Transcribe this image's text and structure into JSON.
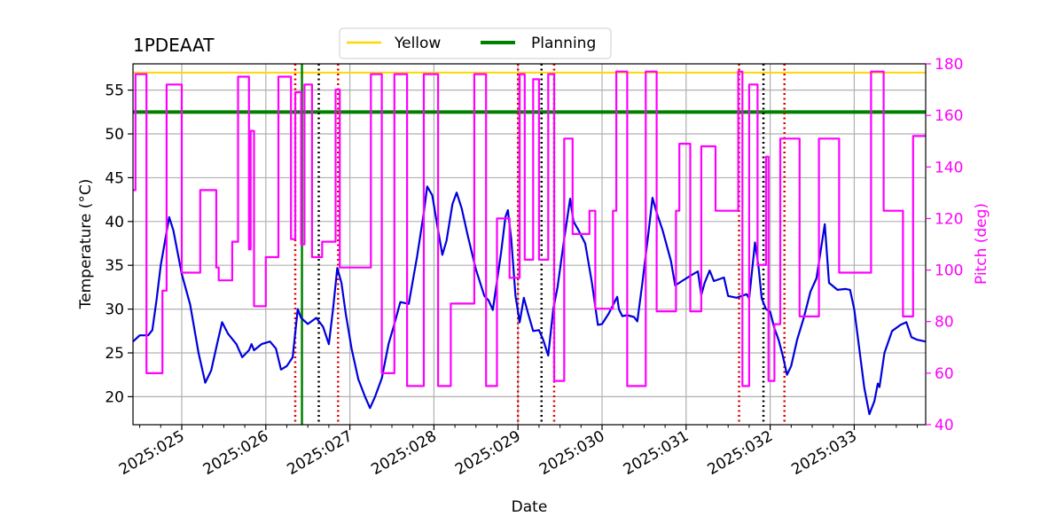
{
  "chart_data": {
    "type": "line",
    "title": "1PDEAAT",
    "xlabel": "Date",
    "ylabel_left": "Temperature (°C)",
    "ylabel_right": "Pitch (deg)",
    "x_unit": "day of year 2025",
    "xlim": [
      24.42,
      33.85
    ],
    "ylim_left": [
      16.8,
      58.0
    ],
    "ylim_right": [
      40,
      180
    ],
    "x_ticks": [
      {
        "value": 25,
        "label": "2025:025"
      },
      {
        "value": 26,
        "label": "2025:026"
      },
      {
        "value": 27,
        "label": "2025:027"
      },
      {
        "value": 28,
        "label": "2025:028"
      },
      {
        "value": 29,
        "label": "2025:029"
      },
      {
        "value": 30,
        "label": "2025:030"
      },
      {
        "value": 31,
        "label": "2025:031"
      },
      {
        "value": 32,
        "label": "2025:032"
      },
      {
        "value": 33,
        "label": "2025:033"
      }
    ],
    "y_ticks_left": [
      20,
      25,
      30,
      35,
      40,
      45,
      50,
      55
    ],
    "y_ticks_right": [
      40,
      60,
      80,
      100,
      120,
      140,
      160,
      180
    ],
    "grid": true,
    "legend": {
      "placement": "top-center",
      "entries": [
        {
          "name": "Yellow",
          "color": "#ffd700"
        },
        {
          "name": "Planning",
          "color": "#008000"
        }
      ]
    },
    "limit_lines": [
      {
        "name": "Yellow",
        "value": 57.0,
        "color": "#ffd700"
      },
      {
        "name": "Planning",
        "value": 52.5,
        "color": "#008000"
      }
    ],
    "series": [
      {
        "name": "1PDEAAT",
        "axis": "left",
        "color": "#0000dd",
        "points": [
          [
            24.42,
            26.3
          ],
          [
            24.5,
            27.0
          ],
          [
            24.6,
            27.0
          ],
          [
            24.65,
            27.6
          ],
          [
            24.7,
            31
          ],
          [
            24.75,
            35
          ],
          [
            24.85,
            40.5
          ],
          [
            24.9,
            39
          ],
          [
            25.0,
            34
          ],
          [
            25.1,
            30.5
          ],
          [
            25.2,
            25
          ],
          [
            25.28,
            21.6
          ],
          [
            25.35,
            23
          ],
          [
            25.42,
            26
          ],
          [
            25.48,
            28.5
          ],
          [
            25.55,
            27.2
          ],
          [
            25.65,
            26
          ],
          [
            25.72,
            24.5
          ],
          [
            25.8,
            25.3
          ],
          [
            25.83,
            26
          ],
          [
            25.86,
            25.3
          ],
          [
            25.95,
            26
          ],
          [
            26.05,
            26.3
          ],
          [
            26.12,
            25.5
          ],
          [
            26.18,
            23.1
          ],
          [
            26.25,
            23.5
          ],
          [
            26.32,
            24.5
          ],
          [
            26.38,
            30
          ],
          [
            26.42,
            29
          ],
          [
            26.5,
            28.3
          ],
          [
            26.6,
            29
          ],
          [
            26.68,
            28
          ],
          [
            26.75,
            26
          ],
          [
            26.8,
            30
          ],
          [
            26.85,
            34.7
          ],
          [
            26.9,
            33
          ],
          [
            26.95,
            29.5
          ],
          [
            27.02,
            25.5
          ],
          [
            27.1,
            22
          ],
          [
            27.18,
            20
          ],
          [
            27.24,
            18.7
          ],
          [
            27.3,
            20
          ],
          [
            27.38,
            22.1
          ],
          [
            27.46,
            26
          ],
          [
            27.52,
            28
          ],
          [
            27.6,
            30.8
          ],
          [
            27.7,
            30.6
          ],
          [
            27.8,
            36
          ],
          [
            27.88,
            41
          ],
          [
            27.92,
            44
          ],
          [
            27.98,
            43
          ],
          [
            28.05,
            39
          ],
          [
            28.1,
            36.2
          ],
          [
            28.15,
            37.8
          ],
          [
            28.22,
            42
          ],
          [
            28.27,
            43.3
          ],
          [
            28.33,
            41.5
          ],
          [
            28.4,
            38.5
          ],
          [
            28.5,
            34.5
          ],
          [
            28.6,
            31.5
          ],
          [
            28.65,
            31
          ],
          [
            28.7,
            29.9
          ],
          [
            28.8,
            36.5
          ],
          [
            28.85,
            40.5
          ],
          [
            28.88,
            41.3
          ],
          [
            28.92,
            38
          ],
          [
            28.97,
            31.5
          ],
          [
            29.02,
            28.5
          ],
          [
            29.07,
            31.3
          ],
          [
            29.12,
            29.5
          ],
          [
            29.18,
            27.5
          ],
          [
            29.25,
            27.6
          ],
          [
            29.3,
            26.5
          ],
          [
            29.36,
            24.7
          ],
          [
            29.42,
            30
          ],
          [
            29.47,
            32.5
          ],
          [
            29.55,
            38
          ],
          [
            29.62,
            42.6
          ],
          [
            29.66,
            40
          ],
          [
            29.72,
            39
          ],
          [
            29.8,
            37.5
          ],
          [
            29.88,
            33
          ],
          [
            29.95,
            28.2
          ],
          [
            30.0,
            28.3
          ],
          [
            30.08,
            29.5
          ],
          [
            30.18,
            31.4
          ],
          [
            30.2,
            30
          ],
          [
            30.24,
            29.2
          ],
          [
            30.3,
            29.3
          ],
          [
            30.38,
            29.1
          ],
          [
            30.42,
            28.6
          ],
          [
            30.48,
            33
          ],
          [
            30.55,
            38.5
          ],
          [
            30.6,
            42.7
          ],
          [
            30.65,
            41
          ],
          [
            30.72,
            39
          ],
          [
            30.82,
            35.5
          ],
          [
            30.87,
            32.7
          ],
          [
            30.95,
            33.2
          ],
          [
            31.05,
            33.8
          ],
          [
            31.14,
            34.3
          ],
          [
            31.18,
            31.6
          ],
          [
            31.22,
            33
          ],
          [
            31.28,
            34.4
          ],
          [
            31.33,
            33.2
          ],
          [
            31.45,
            33.6
          ],
          [
            31.5,
            31.5
          ],
          [
            31.6,
            31.3
          ],
          [
            31.72,
            31.7
          ],
          [
            31.75,
            31.2
          ],
          [
            31.82,
            37.6
          ],
          [
            31.86,
            35
          ],
          [
            31.9,
            31.2
          ],
          [
            31.95,
            30
          ],
          [
            32.0,
            29.7
          ],
          [
            32.05,
            27.8
          ],
          [
            32.1,
            26.5
          ],
          [
            32.15,
            24.7
          ],
          [
            32.2,
            22.5
          ],
          [
            32.25,
            23.5
          ],
          [
            32.32,
            26.5
          ],
          [
            32.4,
            29
          ],
          [
            32.48,
            32
          ],
          [
            32.55,
            33.5
          ],
          [
            32.65,
            39.7
          ],
          [
            32.7,
            33.0
          ],
          [
            32.8,
            32.2
          ],
          [
            32.9,
            32.3
          ],
          [
            32.95,
            32.2
          ],
          [
            33.0,
            30
          ],
          [
            33.06,
            25.5
          ],
          [
            33.12,
            21
          ],
          [
            33.18,
            18
          ],
          [
            33.24,
            19.5
          ],
          [
            33.28,
            21.5
          ],
          [
            33.3,
            21.1
          ],
          [
            33.36,
            25
          ],
          [
            33.45,
            27.5
          ],
          [
            33.55,
            28.2
          ],
          [
            33.62,
            28.5
          ],
          [
            33.68,
            26.8
          ],
          [
            33.75,
            26.5
          ],
          [
            33.85,
            26.3
          ]
        ]
      },
      {
        "name": "Pitch",
        "axis": "right",
        "color": "#ff00ff",
        "points": [
          [
            24.42,
            131
          ],
          [
            24.45,
            131
          ],
          [
            24.45,
            176
          ],
          [
            24.58,
            176
          ],
          [
            24.58,
            60
          ],
          [
            24.77,
            60
          ],
          [
            24.77,
            92
          ],
          [
            24.82,
            92
          ],
          [
            24.82,
            172
          ],
          [
            25.0,
            172
          ],
          [
            25.0,
            99
          ],
          [
            25.22,
            99
          ],
          [
            25.22,
            131
          ],
          [
            25.41,
            131
          ],
          [
            25.41,
            101
          ],
          [
            25.44,
            101
          ],
          [
            25.44,
            96
          ],
          [
            25.6,
            96
          ],
          [
            25.6,
            111
          ],
          [
            25.67,
            111
          ],
          [
            25.67,
            175
          ],
          [
            25.8,
            175
          ],
          [
            25.8,
            108
          ],
          [
            25.82,
            108
          ],
          [
            25.82,
            154
          ],
          [
            25.86,
            154
          ],
          [
            25.86,
            86
          ],
          [
            26.0,
            86
          ],
          [
            26.0,
            105
          ],
          [
            26.15,
            105
          ],
          [
            26.15,
            175
          ],
          [
            26.3,
            175
          ],
          [
            26.3,
            112
          ],
          [
            26.35,
            112
          ],
          [
            26.35,
            169
          ],
          [
            26.42,
            169
          ],
          [
            26.42,
            110
          ],
          [
            26.46,
            110
          ],
          [
            26.46,
            172
          ],
          [
            26.55,
            172
          ],
          [
            26.55,
            105
          ],
          [
            26.67,
            105
          ],
          [
            26.67,
            111
          ],
          [
            26.83,
            111
          ],
          [
            26.83,
            170
          ],
          [
            26.88,
            170
          ],
          [
            26.88,
            101
          ],
          [
            27.25,
            101
          ],
          [
            27.25,
            176
          ],
          [
            27.38,
            176
          ],
          [
            27.38,
            60
          ],
          [
            27.53,
            60
          ],
          [
            27.53,
            176
          ],
          [
            27.68,
            176
          ],
          [
            27.68,
            55
          ],
          [
            27.88,
            55
          ],
          [
            27.88,
            176
          ],
          [
            28.05,
            176
          ],
          [
            28.05,
            55
          ],
          [
            28.2,
            55
          ],
          [
            28.2,
            87
          ],
          [
            28.48,
            87
          ],
          [
            28.48,
            176
          ],
          [
            28.62,
            176
          ],
          [
            28.62,
            55
          ],
          [
            28.75,
            55
          ],
          [
            28.75,
            120
          ],
          [
            28.9,
            120
          ],
          [
            28.9,
            97
          ],
          [
            29.02,
            97
          ],
          [
            29.02,
            176
          ],
          [
            29.08,
            176
          ],
          [
            29.08,
            104
          ],
          [
            29.18,
            104
          ],
          [
            29.18,
            174
          ],
          [
            29.25,
            174
          ],
          [
            29.25,
            104
          ],
          [
            29.36,
            104
          ],
          [
            29.36,
            176
          ],
          [
            29.43,
            176
          ],
          [
            29.43,
            57
          ],
          [
            29.55,
            57
          ],
          [
            29.55,
            151
          ],
          [
            29.65,
            151
          ],
          [
            29.65,
            114
          ],
          [
            29.85,
            114
          ],
          [
            29.85,
            123
          ],
          [
            29.92,
            123
          ],
          [
            29.92,
            85
          ],
          [
            30.13,
            85
          ],
          [
            30.13,
            123
          ],
          [
            30.17,
            123
          ],
          [
            30.17,
            177
          ],
          [
            30.3,
            177
          ],
          [
            30.3,
            55
          ],
          [
            30.52,
            55
          ],
          [
            30.52,
            177
          ],
          [
            30.65,
            177
          ],
          [
            30.65,
            84
          ],
          [
            30.88,
            84
          ],
          [
            30.88,
            123
          ],
          [
            30.92,
            123
          ],
          [
            30.92,
            149
          ],
          [
            31.05,
            149
          ],
          [
            31.05,
            84
          ],
          [
            31.18,
            84
          ],
          [
            31.18,
            148
          ],
          [
            31.35,
            148
          ],
          [
            31.35,
            123
          ],
          [
            31.62,
            123
          ],
          [
            31.62,
            177
          ],
          [
            31.67,
            177
          ],
          [
            31.67,
            55
          ],
          [
            31.75,
            55
          ],
          [
            31.75,
            172
          ],
          [
            31.85,
            172
          ],
          [
            31.85,
            102
          ],
          [
            31.95,
            102
          ],
          [
            31.95,
            144
          ],
          [
            31.98,
            144
          ],
          [
            31.98,
            57
          ],
          [
            32.05,
            57
          ],
          [
            32.05,
            79
          ],
          [
            32.12,
            79
          ],
          [
            32.12,
            151
          ],
          [
            32.35,
            151
          ],
          [
            32.35,
            82
          ],
          [
            32.58,
            82
          ],
          [
            32.58,
            151
          ],
          [
            32.82,
            151
          ],
          [
            32.82,
            99
          ],
          [
            33.2,
            99
          ],
          [
            33.2,
            177
          ],
          [
            33.35,
            177
          ],
          [
            33.35,
            123
          ],
          [
            33.58,
            123
          ],
          [
            33.58,
            82
          ],
          [
            33.7,
            82
          ],
          [
            33.7,
            152
          ],
          [
            33.85,
            152
          ]
        ]
      }
    ],
    "vertical_markers": [
      {
        "x": 26.35,
        "color": "#dd0000",
        "style": "dotted"
      },
      {
        "x": 26.43,
        "color": "#008000",
        "style": "solid"
      },
      {
        "x": 26.63,
        "color": "#000000",
        "style": "dotted"
      },
      {
        "x": 26.86,
        "color": "#dd0000",
        "style": "dotted"
      },
      {
        "x": 29.0,
        "color": "#dd0000",
        "style": "dotted"
      },
      {
        "x": 29.28,
        "color": "#000000",
        "style": "dotted"
      },
      {
        "x": 29.43,
        "color": "#dd0000",
        "style": "dotted"
      },
      {
        "x": 31.63,
        "color": "#dd0000",
        "style": "dotted"
      },
      {
        "x": 31.92,
        "color": "#000000",
        "style": "dotted"
      },
      {
        "x": 32.17,
        "color": "#dd0000",
        "style": "dotted"
      }
    ],
    "colors": {
      "right_axis": "#ff00ff",
      "grid": "#b0b0b0",
      "axis": "#000000"
    }
  }
}
